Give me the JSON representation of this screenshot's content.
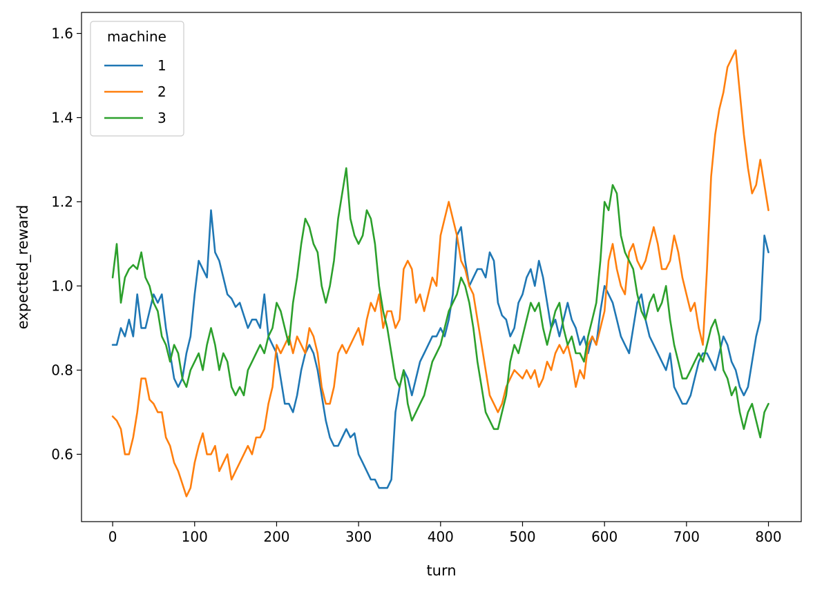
{
  "chart_data": {
    "type": "line",
    "title": "",
    "xlabel": "turn",
    "ylabel": "expected_reward",
    "xlim": [
      -38,
      840
    ],
    "ylim": [
      0.44,
      1.65
    ],
    "xticks": [
      0,
      100,
      200,
      300,
      400,
      500,
      600,
      700,
      800
    ],
    "yticks": [
      0.6,
      0.8,
      1.0,
      1.2,
      1.4,
      1.6
    ],
    "grid": false,
    "legend": {
      "title": "machine",
      "position": "top-left"
    },
    "series": [
      {
        "name": "1",
        "color": "#1f77b4",
        "x": [
          0,
          5,
          10,
          15,
          20,
          25,
          30,
          35,
          40,
          45,
          50,
          55,
          60,
          65,
          70,
          75,
          80,
          85,
          90,
          95,
          100,
          105,
          110,
          115,
          120,
          125,
          130,
          135,
          140,
          145,
          150,
          155,
          160,
          165,
          170,
          175,
          180,
          185,
          190,
          195,
          200,
          205,
          210,
          215,
          220,
          225,
          230,
          235,
          240,
          245,
          250,
          255,
          260,
          265,
          270,
          275,
          280,
          285,
          290,
          295,
          300,
          305,
          310,
          315,
          320,
          325,
          330,
          335,
          340,
          345,
          350,
          355,
          360,
          365,
          370,
          375,
          380,
          385,
          390,
          395,
          400,
          405,
          410,
          415,
          420,
          425,
          430,
          435,
          440,
          445,
          450,
          455,
          460,
          465,
          470,
          475,
          480,
          485,
          490,
          495,
          500,
          505,
          510,
          515,
          520,
          525,
          530,
          535,
          540,
          545,
          550,
          555,
          560,
          565,
          570,
          575,
          580,
          585,
          590,
          595,
          600,
          605,
          610,
          615,
          620,
          625,
          630,
          635,
          640,
          645,
          650,
          655,
          660,
          665,
          670,
          675,
          680,
          685,
          690,
          695,
          700,
          705,
          710,
          715,
          720,
          725,
          730,
          735,
          740,
          745,
          750,
          755,
          760,
          765,
          770,
          775,
          780,
          785,
          790,
          795,
          800
        ],
        "y": [
          0.86,
          0.86,
          0.9,
          0.88,
          0.92,
          0.88,
          0.98,
          0.9,
          0.9,
          0.94,
          0.98,
          0.96,
          0.98,
          0.9,
          0.84,
          0.78,
          0.76,
          0.78,
          0.84,
          0.88,
          0.98,
          1.06,
          1.04,
          1.02,
          1.18,
          1.08,
          1.06,
          1.02,
          0.98,
          0.97,
          0.95,
          0.96,
          0.93,
          0.9,
          0.92,
          0.92,
          0.9,
          0.98,
          0.88,
          0.86,
          0.84,
          0.78,
          0.72,
          0.72,
          0.7,
          0.74,
          0.8,
          0.84,
          0.86,
          0.84,
          0.8,
          0.74,
          0.68,
          0.64,
          0.62,
          0.62,
          0.64,
          0.66,
          0.64,
          0.65,
          0.6,
          0.58,
          0.56,
          0.54,
          0.54,
          0.52,
          0.52,
          0.52,
          0.54,
          0.7,
          0.76,
          0.8,
          0.78,
          0.74,
          0.78,
          0.82,
          0.84,
          0.86,
          0.88,
          0.88,
          0.9,
          0.88,
          0.92,
          0.98,
          1.12,
          1.14,
          1.06,
          1.0,
          1.02,
          1.04,
          1.04,
          1.02,
          1.08,
          1.06,
          0.96,
          0.93,
          0.92,
          0.88,
          0.9,
          0.96,
          0.98,
          1.02,
          1.04,
          1.0,
          1.06,
          1.02,
          0.96,
          0.9,
          0.92,
          0.88,
          0.92,
          0.96,
          0.92,
          0.9,
          0.86,
          0.88,
          0.84,
          0.88,
          0.86,
          0.94,
          1.0,
          0.98,
          0.96,
          0.92,
          0.88,
          0.86,
          0.84,
          0.9,
          0.96,
          0.98,
          0.92,
          0.88,
          0.86,
          0.84,
          0.82,
          0.8,
          0.84,
          0.76,
          0.74,
          0.72,
          0.72,
          0.74,
          0.78,
          0.82,
          0.84,
          0.84,
          0.82,
          0.8,
          0.84,
          0.88,
          0.86,
          0.82,
          0.8,
          0.76,
          0.74,
          0.76,
          0.82,
          0.88,
          0.92,
          1.12,
          1.08
        ]
      },
      {
        "name": "2",
        "color": "#ff7f0e",
        "x": [
          0,
          5,
          10,
          15,
          20,
          25,
          30,
          35,
          40,
          45,
          50,
          55,
          60,
          65,
          70,
          75,
          80,
          85,
          90,
          95,
          100,
          105,
          110,
          115,
          120,
          125,
          130,
          135,
          140,
          145,
          150,
          155,
          160,
          165,
          170,
          175,
          180,
          185,
          190,
          195,
          200,
          205,
          210,
          215,
          220,
          225,
          230,
          235,
          240,
          245,
          250,
          255,
          260,
          265,
          270,
          275,
          280,
          285,
          290,
          295,
          300,
          305,
          310,
          315,
          320,
          325,
          330,
          335,
          340,
          345,
          350,
          355,
          360,
          365,
          370,
          375,
          380,
          385,
          390,
          395,
          400,
          405,
          410,
          415,
          420,
          425,
          430,
          435,
          440,
          445,
          450,
          455,
          460,
          465,
          470,
          475,
          480,
          485,
          490,
          495,
          500,
          505,
          510,
          515,
          520,
          525,
          530,
          535,
          540,
          545,
          550,
          555,
          560,
          565,
          570,
          575,
          580,
          585,
          590,
          595,
          600,
          605,
          610,
          615,
          620,
          625,
          630,
          635,
          640,
          645,
          650,
          655,
          660,
          665,
          670,
          675,
          680,
          685,
          690,
          695,
          700,
          705,
          710,
          715,
          720,
          725,
          730,
          735,
          740,
          745,
          750,
          755,
          760,
          765,
          770,
          775,
          780,
          785,
          790,
          795,
          800
        ],
        "y": [
          0.69,
          0.68,
          0.66,
          0.6,
          0.6,
          0.64,
          0.7,
          0.78,
          0.78,
          0.73,
          0.72,
          0.7,
          0.7,
          0.64,
          0.62,
          0.58,
          0.56,
          0.53,
          0.5,
          0.52,
          0.58,
          0.62,
          0.65,
          0.6,
          0.6,
          0.62,
          0.56,
          0.58,
          0.6,
          0.54,
          0.56,
          0.58,
          0.6,
          0.62,
          0.6,
          0.64,
          0.64,
          0.66,
          0.72,
          0.76,
          0.86,
          0.84,
          0.86,
          0.88,
          0.84,
          0.88,
          0.86,
          0.84,
          0.9,
          0.88,
          0.84,
          0.76,
          0.72,
          0.72,
          0.76,
          0.84,
          0.86,
          0.84,
          0.86,
          0.88,
          0.9,
          0.86,
          0.92,
          0.96,
          0.94,
          0.98,
          0.9,
          0.94,
          0.94,
          0.9,
          0.92,
          1.04,
          1.06,
          1.04,
          0.96,
          0.98,
          0.94,
          0.98,
          1.02,
          1.0,
          1.12,
          1.16,
          1.2,
          1.16,
          1.12,
          1.06,
          1.04,
          1.0,
          0.98,
          0.92,
          0.86,
          0.8,
          0.74,
          0.72,
          0.7,
          0.72,
          0.76,
          0.78,
          0.8,
          0.79,
          0.78,
          0.8,
          0.78,
          0.8,
          0.76,
          0.78,
          0.82,
          0.8,
          0.84,
          0.86,
          0.84,
          0.86,
          0.82,
          0.76,
          0.8,
          0.78,
          0.86,
          0.88,
          0.86,
          0.9,
          0.94,
          1.06,
          1.1,
          1.04,
          1.0,
          0.98,
          1.08,
          1.1,
          1.06,
          1.04,
          1.06,
          1.1,
          1.14,
          1.1,
          1.04,
          1.04,
          1.06,
          1.12,
          1.08,
          1.02,
          0.98,
          0.94,
          0.96,
          0.9,
          0.86,
          1.04,
          1.26,
          1.36,
          1.42,
          1.46,
          1.52,
          1.54,
          1.56,
          1.46,
          1.36,
          1.28,
          1.22,
          1.24,
          1.3,
          1.24,
          1.18
        ]
      },
      {
        "name": "3",
        "color": "#2ca02c",
        "x": [
          0,
          5,
          10,
          15,
          20,
          25,
          30,
          35,
          40,
          45,
          50,
          55,
          60,
          65,
          70,
          75,
          80,
          85,
          90,
          95,
          100,
          105,
          110,
          115,
          120,
          125,
          130,
          135,
          140,
          145,
          150,
          155,
          160,
          165,
          170,
          175,
          180,
          185,
          190,
          195,
          200,
          205,
          210,
          215,
          220,
          225,
          230,
          235,
          240,
          245,
          250,
          255,
          260,
          265,
          270,
          275,
          280,
          285,
          290,
          295,
          300,
          305,
          310,
          315,
          320,
          325,
          330,
          335,
          340,
          345,
          350,
          355,
          360,
          365,
          370,
          375,
          380,
          385,
          390,
          395,
          400,
          405,
          410,
          415,
          420,
          425,
          430,
          435,
          440,
          445,
          450,
          455,
          460,
          465,
          470,
          475,
          480,
          485,
          490,
          495,
          500,
          505,
          510,
          515,
          520,
          525,
          530,
          535,
          540,
          545,
          550,
          555,
          560,
          565,
          570,
          575,
          580,
          585,
          590,
          595,
          600,
          605,
          610,
          615,
          620,
          625,
          630,
          635,
          640,
          645,
          650,
          655,
          660,
          665,
          670,
          675,
          680,
          685,
          690,
          695,
          700,
          705,
          710,
          715,
          720,
          725,
          730,
          735,
          740,
          745,
          750,
          755,
          760,
          765,
          770,
          775,
          780,
          785,
          790,
          795,
          800
        ],
        "y": [
          1.02,
          1.1,
          0.96,
          1.02,
          1.04,
          1.05,
          1.04,
          1.08,
          1.02,
          1.0,
          0.96,
          0.94,
          0.88,
          0.86,
          0.82,
          0.86,
          0.84,
          0.78,
          0.76,
          0.8,
          0.82,
          0.84,
          0.8,
          0.86,
          0.9,
          0.86,
          0.8,
          0.84,
          0.82,
          0.76,
          0.74,
          0.76,
          0.74,
          0.8,
          0.82,
          0.84,
          0.86,
          0.84,
          0.88,
          0.9,
          0.96,
          0.94,
          0.9,
          0.86,
          0.96,
          1.02,
          1.1,
          1.16,
          1.14,
          1.1,
          1.08,
          1.0,
          0.96,
          1.0,
          1.06,
          1.16,
          1.22,
          1.28,
          1.16,
          1.12,
          1.1,
          1.12,
          1.18,
          1.16,
          1.1,
          1.0,
          0.94,
          0.9,
          0.84,
          0.78,
          0.76,
          0.8,
          0.72,
          0.68,
          0.7,
          0.72,
          0.74,
          0.78,
          0.82,
          0.84,
          0.86,
          0.9,
          0.94,
          0.96,
          0.98,
          1.02,
          1.0,
          0.96,
          0.9,
          0.82,
          0.76,
          0.7,
          0.68,
          0.66,
          0.66,
          0.7,
          0.74,
          0.82,
          0.86,
          0.84,
          0.88,
          0.92,
          0.96,
          0.94,
          0.96,
          0.9,
          0.86,
          0.9,
          0.94,
          0.96,
          0.9,
          0.86,
          0.88,
          0.84,
          0.84,
          0.82,
          0.88,
          0.92,
          0.96,
          1.06,
          1.2,
          1.18,
          1.24,
          1.22,
          1.12,
          1.08,
          1.06,
          1.04,
          0.98,
          0.94,
          0.92,
          0.96,
          0.98,
          0.94,
          0.96,
          1.0,
          0.92,
          0.86,
          0.82,
          0.78,
          0.78,
          0.8,
          0.82,
          0.84,
          0.82,
          0.86,
          0.9,
          0.92,
          0.88,
          0.8,
          0.78,
          0.74,
          0.76,
          0.7,
          0.66,
          0.7,
          0.72,
          0.68,
          0.64,
          0.7,
          0.72
        ]
      }
    ]
  }
}
